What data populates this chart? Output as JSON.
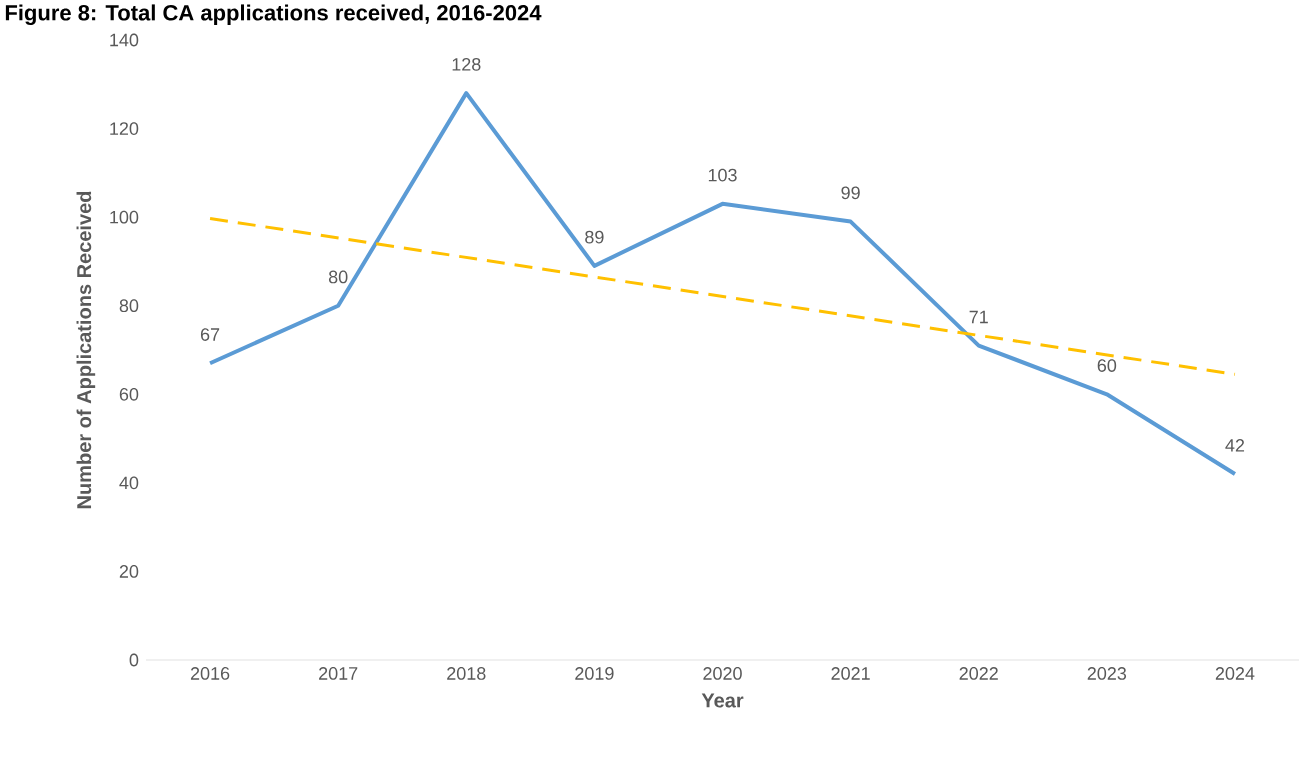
{
  "chart_data": {
    "type": "line",
    "title": "Figure 8: Total CA applications received, 2016-2024",
    "xlabel": "Year",
    "ylabel": "Number of Applications Received",
    "xlim": [
      2015.5,
      2024.5
    ],
    "xticks": [
      2016,
      2017,
      2018,
      2019,
      2020,
      2021,
      2022,
      2023,
      2024
    ],
    "ylim": [
      0,
      140
    ],
    "yticks": [
      0,
      20,
      40,
      60,
      80,
      100,
      120,
      140
    ],
    "grid": false,
    "marker": "none",
    "series": [
      {
        "color": "#5b9bd5",
        "line_style": "solid",
        "x": [
          2016,
          2017,
          2018,
          2019,
          2020,
          2021,
          2022,
          2023,
          2024
        ],
        "values": [
          67,
          80,
          128,
          89,
          103,
          99,
          71,
          60,
          42
        ],
        "value_labels": [
          "67",
          "80",
          "128",
          "89",
          "103",
          "99",
          "71",
          "60",
          "42"
        ]
      },
      {
        "type": "line",
        "color": "#ffc000",
        "line_style": "dashed",
        "x": [
          2016,
          2024
        ],
        "values": [
          99.7,
          64.5
        ]
      }
    ]
  }
}
